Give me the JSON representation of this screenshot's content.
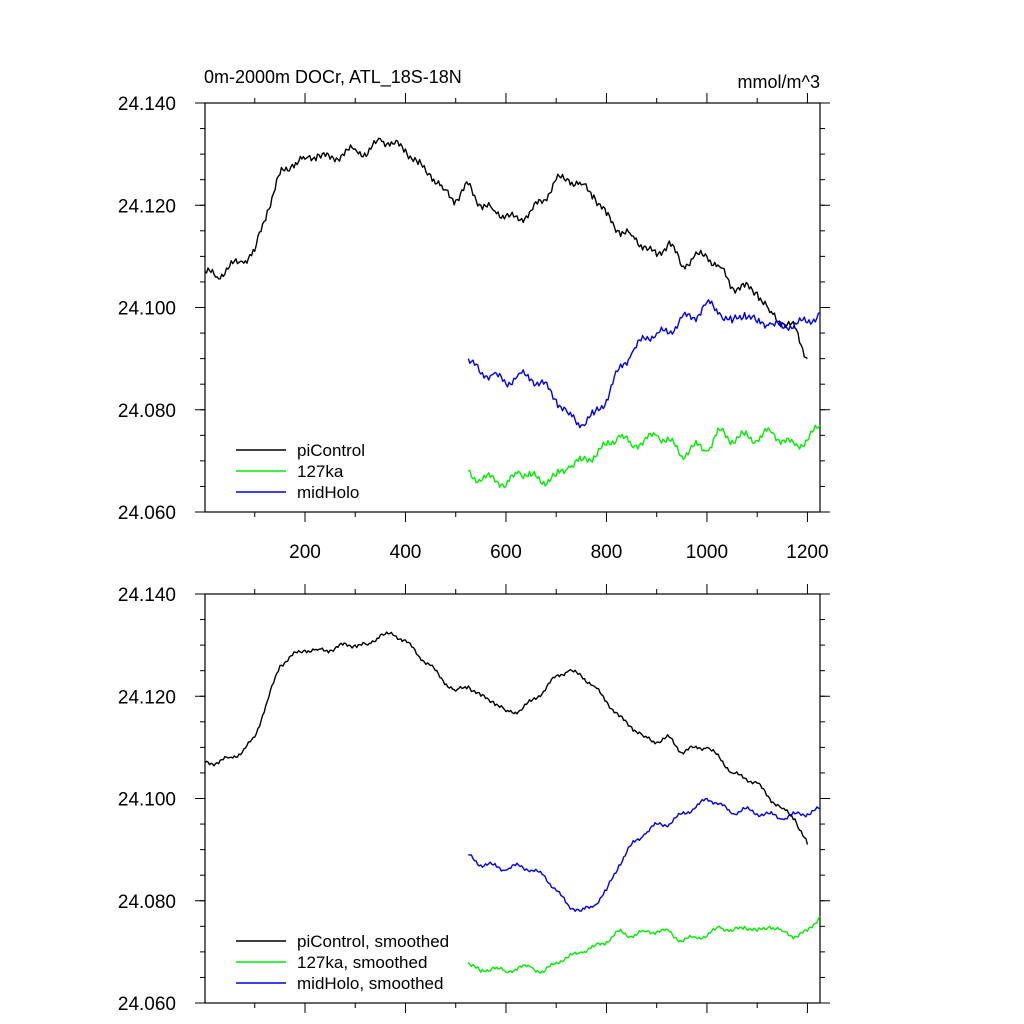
{
  "page": {
    "title": "0m-2000m DOCr, ATL_18S-18N",
    "units": "mmol/m^3"
  },
  "colors": {
    "piControl": "#000000",
    "127ka": "#00ee00",
    "midHolo": "#0000ee"
  },
  "chart_data": [
    {
      "type": "line",
      "panel": "top",
      "xlim": [
        1,
        1225
      ],
      "ylim": [
        24.06,
        24.14
      ],
      "x_ticks": [
        200,
        400,
        600,
        800,
        1000,
        1200
      ],
      "x_tick_labels": [
        "200",
        "400",
        "600",
        "800",
        "1000",
        "1200"
      ],
      "y_ticks": [
        24.06,
        24.08,
        24.1,
        24.12,
        24.14
      ],
      "y_tick_labels": [
        "24.060",
        "24.080",
        "24.100",
        "24.120",
        "24.140"
      ],
      "grid": false,
      "legend_position": "bottom-left",
      "legend": [
        "piControl",
        "127ka",
        "midHolo"
      ],
      "series": [
        {
          "name": "piControl",
          "key": "piControl",
          "x": [
            1,
            25,
            50,
            75,
            100,
            125,
            150,
            175,
            200,
            225,
            250,
            275,
            300,
            325,
            350,
            375,
            400,
            425,
            450,
            475,
            500,
            525,
            550,
            575,
            600,
            625,
            650,
            675,
            700,
            725,
            750,
            775,
            800,
            825,
            850,
            875,
            900,
            925,
            950,
            975,
            1000,
            1025,
            1050,
            1075,
            1100,
            1125,
            1150,
            1175,
            1200
          ],
          "y": [
            24.107,
            24.106,
            24.108,
            24.109,
            24.111,
            24.119,
            24.126,
            24.128,
            24.129,
            24.13,
            24.129,
            24.13,
            24.131,
            24.13,
            24.133,
            24.132,
            24.131,
            24.128,
            24.126,
            24.123,
            24.121,
            24.124,
            24.12,
            24.119,
            24.118,
            24.117,
            24.119,
            24.121,
            24.125,
            24.125,
            24.124,
            24.122,
            24.118,
            24.115,
            24.114,
            24.112,
            24.11,
            24.113,
            24.108,
            24.11,
            24.11,
            24.108,
            24.104,
            24.104,
            24.103,
            24.099,
            24.097,
            24.096,
            24.09
          ]
        },
        {
          "name": "127ka",
          "key": "127ka",
          "x": [
            525,
            550,
            575,
            600,
            625,
            650,
            675,
            700,
            725,
            750,
            775,
            800,
            825,
            850,
            875,
            900,
            925,
            950,
            975,
            1000,
            1025,
            1050,
            1075,
            1100,
            1125,
            1150,
            1175,
            1200,
            1225
          ],
          "y": [
            24.068,
            24.066,
            24.067,
            24.065,
            24.068,
            24.067,
            24.066,
            24.067,
            24.069,
            24.07,
            24.071,
            24.073,
            24.075,
            24.073,
            24.074,
            24.075,
            24.074,
            24.071,
            24.073,
            24.072,
            24.076,
            24.074,
            24.075,
            24.074,
            24.076,
            24.074,
            24.073,
            24.074,
            24.077
          ]
        },
        {
          "name": "midHolo",
          "key": "midHolo",
          "x": [
            525,
            550,
            575,
            600,
            625,
            650,
            675,
            700,
            725,
            750,
            775,
            800,
            825,
            850,
            875,
            900,
            925,
            950,
            975,
            1000,
            1025,
            1050,
            1075,
            1100,
            1125,
            1150,
            1175,
            1200,
            1225
          ],
          "y": [
            24.09,
            24.087,
            24.087,
            24.085,
            24.087,
            24.086,
            24.085,
            24.082,
            24.079,
            24.077,
            24.079,
            24.082,
            24.088,
            24.091,
            24.094,
            24.095,
            24.095,
            24.098,
            24.098,
            24.101,
            24.099,
            24.097,
            24.099,
            24.097,
            24.097,
            24.096,
            24.097,
            24.097,
            24.099
          ]
        }
      ]
    },
    {
      "type": "line",
      "panel": "bottom",
      "xlim": [
        1,
        1225
      ],
      "ylim": [
        24.06,
        24.14
      ],
      "x_ticks": [
        200,
        400,
        600,
        800,
        1000,
        1200
      ],
      "y_ticks": [
        24.06,
        24.08,
        24.1,
        24.12,
        24.14
      ],
      "y_tick_labels": [
        "24.060",
        "24.080",
        "24.100",
        "24.120",
        "24.140"
      ],
      "grid": false,
      "legend_position": "bottom-left",
      "legend": [
        "piControl, smoothed",
        "127ka, smoothed",
        "midHolo, smoothed"
      ],
      "series": [
        {
          "name": "piControl, smoothed",
          "key": "piControl",
          "x": [
            1,
            25,
            50,
            75,
            100,
            125,
            150,
            175,
            200,
            225,
            250,
            275,
            300,
            325,
            350,
            375,
            400,
            425,
            450,
            475,
            500,
            525,
            550,
            575,
            600,
            625,
            650,
            675,
            700,
            725,
            750,
            775,
            800,
            825,
            850,
            875,
            900,
            925,
            950,
            975,
            1000,
            1025,
            1050,
            1075,
            1100,
            1125,
            1150,
            1175,
            1200
          ],
          "y": [
            24.107,
            24.107,
            24.108,
            24.109,
            24.112,
            24.119,
            24.126,
            24.128,
            24.129,
            24.129,
            24.129,
            24.13,
            24.13,
            24.13,
            24.132,
            24.132,
            24.131,
            24.128,
            24.126,
            24.123,
            24.121,
            24.122,
            24.12,
            24.119,
            24.117,
            24.117,
            24.119,
            24.121,
            24.124,
            24.125,
            24.124,
            24.122,
            24.119,
            24.116,
            24.114,
            24.112,
            24.111,
            24.112,
            24.109,
            24.11,
            24.11,
            24.108,
            24.105,
            24.104,
            24.103,
            24.1,
            24.098,
            24.096,
            24.091
          ]
        },
        {
          "name": "127ka, smoothed",
          "key": "127ka",
          "x": [
            525,
            550,
            575,
            600,
            625,
            650,
            675,
            700,
            725,
            750,
            775,
            800,
            825,
            850,
            875,
            900,
            925,
            950,
            975,
            1000,
            1025,
            1050,
            1075,
            1100,
            1125,
            1150,
            1175,
            1200,
            1225
          ],
          "y": [
            24.068,
            24.066,
            24.067,
            24.066,
            24.067,
            24.067,
            24.066,
            24.068,
            24.069,
            24.07,
            24.071,
            24.072,
            24.074,
            24.073,
            24.074,
            24.074,
            24.074,
            24.072,
            24.073,
            24.073,
            24.075,
            24.074,
            24.075,
            24.074,
            24.075,
            24.074,
            24.073,
            24.074,
            24.077
          ]
        },
        {
          "name": "midHolo, smoothed",
          "key": "midHolo",
          "x": [
            525,
            550,
            575,
            600,
            625,
            650,
            675,
            700,
            725,
            750,
            775,
            800,
            825,
            850,
            875,
            900,
            925,
            950,
            975,
            1000,
            1025,
            1050,
            1075,
            1100,
            1125,
            1150,
            1175,
            1200,
            1225
          ],
          "y": [
            24.089,
            24.087,
            24.087,
            24.086,
            24.087,
            24.086,
            24.085,
            24.082,
            24.079,
            24.078,
            24.079,
            24.082,
            24.087,
            24.091,
            24.093,
            24.095,
            24.095,
            24.097,
            24.098,
            24.1,
            24.099,
            24.097,
            24.098,
            24.097,
            24.097,
            24.096,
            24.097,
            24.097,
            24.098
          ]
        }
      ]
    }
  ]
}
